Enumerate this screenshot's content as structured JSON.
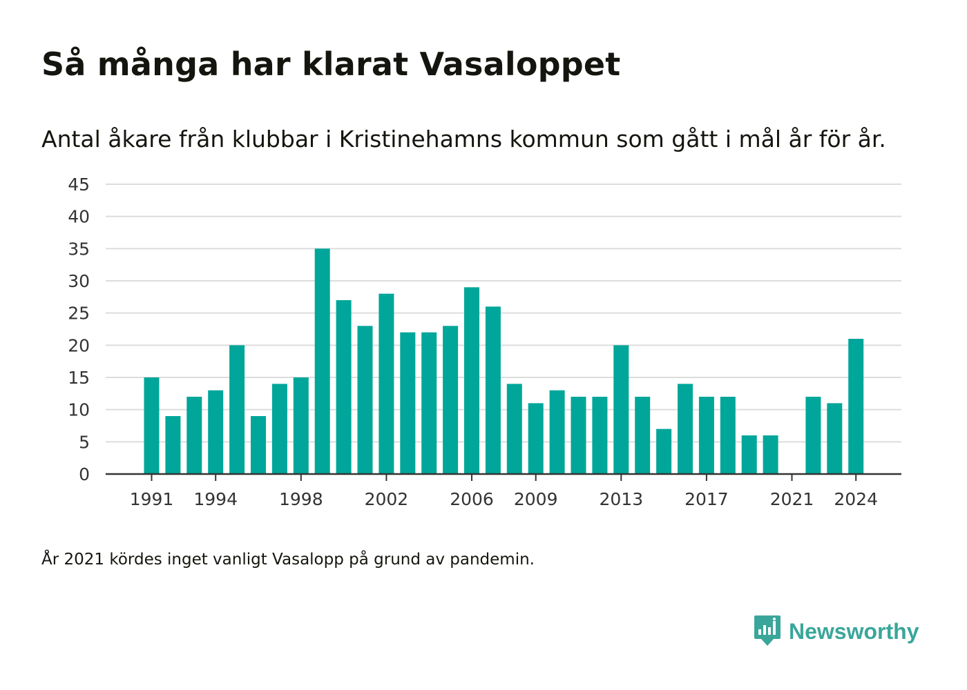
{
  "title": "Så många har klarat Vasaloppet",
  "subtitle": "Antal åkare från klubbar i Kristinehamns kommun som gått i mål år för år.",
  "note": "År 2021 kördes inget vanligt Vasalopp på grund av pandemin.",
  "brand": {
    "name": "Newsworthy",
    "icon": "newsworthy-logo-icon"
  },
  "colors": {
    "bar": "#00a69a",
    "grid": "#dcdcdc",
    "axis": "#333333",
    "text": "#15150f",
    "brand": "#3aa69a"
  },
  "chart_data": {
    "type": "bar",
    "title": "",
    "xlabel": "",
    "ylabel": "",
    "ylim": [
      0,
      45
    ],
    "yticks": [
      0,
      5,
      10,
      15,
      20,
      25,
      30,
      35,
      40,
      45
    ],
    "xtick_labels": [
      "1991",
      "1994",
      "1998",
      "2002",
      "2006",
      "2009",
      "2013",
      "2017",
      "2021",
      "2024"
    ],
    "grid": true,
    "categories": [
      1991,
      1992,
      1993,
      1994,
      1995,
      1996,
      1997,
      1998,
      1999,
      2000,
      2001,
      2002,
      2003,
      2004,
      2005,
      2006,
      2007,
      2008,
      2009,
      2010,
      2011,
      2012,
      2013,
      2014,
      2015,
      2016,
      2017,
      2018,
      2019,
      2020,
      2021,
      2022,
      2023,
      2024
    ],
    "values": [
      15,
      9,
      12,
      13,
      20,
      9,
      14,
      15,
      35,
      27,
      23,
      28,
      22,
      22,
      23,
      29,
      26,
      14,
      11,
      13,
      12,
      12,
      20,
      12,
      7,
      14,
      12,
      12,
      6,
      6,
      0,
      12,
      11,
      21
    ]
  }
}
